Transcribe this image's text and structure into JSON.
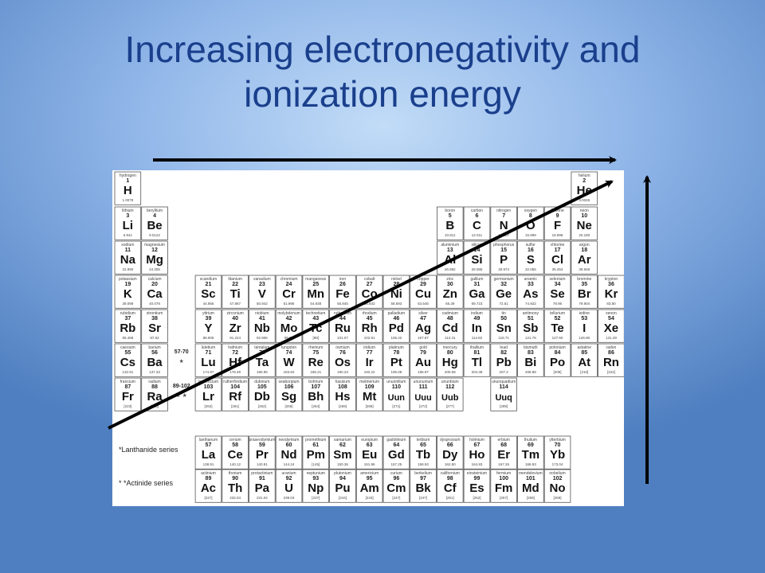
{
  "slide": {
    "title_lines": [
      "Increasing electronegativity and",
      "ionization energy"
    ]
  },
  "colors": {
    "title": "#1a3f8c",
    "arrow": "#000000",
    "background_center": "#c2dcf7",
    "background_edge": "#4f7fc0"
  },
  "periodic_table": {
    "elements": [
      {
        "name": "hydrogen",
        "num": "1",
        "sym": "H",
        "mass": "1.0079",
        "row": 0,
        "col": 0
      },
      {
        "name": "helium",
        "num": "2",
        "sym": "He",
        "mass": "4.0026",
        "row": 0,
        "col": 17
      },
      {
        "name": "lithium",
        "num": "3",
        "sym": "Li",
        "mass": "6.941",
        "row": 1,
        "col": 0
      },
      {
        "name": "beryllium",
        "num": "4",
        "sym": "Be",
        "mass": "9.0122",
        "row": 1,
        "col": 1
      },
      {
        "name": "boron",
        "num": "5",
        "sym": "B",
        "mass": "10.811",
        "row": 1,
        "col": 12
      },
      {
        "name": "carbon",
        "num": "6",
        "sym": "C",
        "mass": "12.011",
        "row": 1,
        "col": 13
      },
      {
        "name": "nitrogen",
        "num": "7",
        "sym": "N",
        "mass": "14.007",
        "row": 1,
        "col": 14
      },
      {
        "name": "oxygen",
        "num": "8",
        "sym": "O",
        "mass": "15.999",
        "row": 1,
        "col": 15
      },
      {
        "name": "fluorine",
        "num": "9",
        "sym": "F",
        "mass": "18.998",
        "row": 1,
        "col": 16
      },
      {
        "name": "neon",
        "num": "10",
        "sym": "Ne",
        "mass": "20.180",
        "row": 1,
        "col": 17
      },
      {
        "name": "sodium",
        "num": "11",
        "sym": "Na",
        "mass": "22.990",
        "row": 2,
        "col": 0
      },
      {
        "name": "magnesium",
        "num": "12",
        "sym": "Mg",
        "mass": "24.305",
        "row": 2,
        "col": 1
      },
      {
        "name": "aluminium",
        "num": "13",
        "sym": "Al",
        "mass": "26.982",
        "row": 2,
        "col": 12
      },
      {
        "name": "silicon",
        "num": "14",
        "sym": "Si",
        "mass": "28.086",
        "row": 2,
        "col": 13
      },
      {
        "name": "phosphorus",
        "num": "15",
        "sym": "P",
        "mass": "30.974",
        "row": 2,
        "col": 14
      },
      {
        "name": "sulfur",
        "num": "16",
        "sym": "S",
        "mass": "32.065",
        "row": 2,
        "col": 15
      },
      {
        "name": "chlorine",
        "num": "17",
        "sym": "Cl",
        "mass": "35.453",
        "row": 2,
        "col": 16
      },
      {
        "name": "argon",
        "num": "18",
        "sym": "Ar",
        "mass": "39.948",
        "row": 2,
        "col": 17
      },
      {
        "name": "potassium",
        "num": "19",
        "sym": "K",
        "mass": "39.098",
        "row": 3,
        "col": 0
      },
      {
        "name": "calcium",
        "num": "20",
        "sym": "Ca",
        "mass": "40.078",
        "row": 3,
        "col": 1
      },
      {
        "name": "scandium",
        "num": "21",
        "sym": "Sc",
        "mass": "44.956",
        "row": 3,
        "col": 3
      },
      {
        "name": "titanium",
        "num": "22",
        "sym": "Ti",
        "mass": "47.867",
        "row": 3,
        "col": 4
      },
      {
        "name": "vanadium",
        "num": "23",
        "sym": "V",
        "mass": "50.942",
        "row": 3,
        "col": 5
      },
      {
        "name": "chromium",
        "num": "24",
        "sym": "Cr",
        "mass": "51.996",
        "row": 3,
        "col": 6
      },
      {
        "name": "manganese",
        "num": "25",
        "sym": "Mn",
        "mass": "54.938",
        "row": 3,
        "col": 7
      },
      {
        "name": "iron",
        "num": "26",
        "sym": "Fe",
        "mass": "55.845",
        "row": 3,
        "col": 8
      },
      {
        "name": "cobalt",
        "num": "27",
        "sym": "Co",
        "mass": "58.933",
        "row": 3,
        "col": 9
      },
      {
        "name": "nickel",
        "num": "28",
        "sym": "Ni",
        "mass": "58.693",
        "row": 3,
        "col": 10
      },
      {
        "name": "copper",
        "num": "29",
        "sym": "Cu",
        "mass": "63.546",
        "row": 3,
        "col": 11
      },
      {
        "name": "zinc",
        "num": "30",
        "sym": "Zn",
        "mass": "65.39",
        "row": 3,
        "col": 12
      },
      {
        "name": "gallium",
        "num": "31",
        "sym": "Ga",
        "mass": "69.723",
        "row": 3,
        "col": 13
      },
      {
        "name": "germanium",
        "num": "32",
        "sym": "Ge",
        "mass": "72.61",
        "row": 3,
        "col": 14
      },
      {
        "name": "arsenic",
        "num": "33",
        "sym": "As",
        "mass": "74.922",
        "row": 3,
        "col": 15
      },
      {
        "name": "selenium",
        "num": "34",
        "sym": "Se",
        "mass": "78.96",
        "row": 3,
        "col": 16
      },
      {
        "name": "bromine",
        "num": "35",
        "sym": "Br",
        "mass": "79.904",
        "row": 3,
        "col": 17
      },
      {
        "name": "krypton",
        "num": "36",
        "sym": "Kr",
        "mass": "83.80",
        "row": 3,
        "col": 18
      },
      {
        "name": "rubidium",
        "num": "37",
        "sym": "Rb",
        "mass": "85.468",
        "row": 4,
        "col": 0
      },
      {
        "name": "strontium",
        "num": "38",
        "sym": "Sr",
        "mass": "87.62",
        "row": 4,
        "col": 1
      },
      {
        "name": "yttrium",
        "num": "39",
        "sym": "Y",
        "mass": "88.906",
        "row": 4,
        "col": 3
      },
      {
        "name": "zirconium",
        "num": "40",
        "sym": "Zr",
        "mass": "91.224",
        "row": 4,
        "col": 4
      },
      {
        "name": "niobium",
        "num": "41",
        "sym": "Nb",
        "mass": "92.906",
        "row": 4,
        "col": 5
      },
      {
        "name": "molybdenum",
        "num": "42",
        "sym": "Mo",
        "mass": "95.94",
        "row": 4,
        "col": 6
      },
      {
        "name": "technetium",
        "num": "43",
        "sym": "Tc",
        "mass": "[98]",
        "row": 4,
        "col": 7
      },
      {
        "name": "ruthenium",
        "num": "44",
        "sym": "Ru",
        "mass": "101.07",
        "row": 4,
        "col": 8
      },
      {
        "name": "rhodium",
        "num": "45",
        "sym": "Rh",
        "mass": "102.91",
        "row": 4,
        "col": 9
      },
      {
        "name": "palladium",
        "num": "46",
        "sym": "Pd",
        "mass": "106.42",
        "row": 4,
        "col": 10
      },
      {
        "name": "silver",
        "num": "47",
        "sym": "Ag",
        "mass": "107.87",
        "row": 4,
        "col": 11
      },
      {
        "name": "cadmium",
        "num": "48",
        "sym": "Cd",
        "mass": "112.41",
        "row": 4,
        "col": 12
      },
      {
        "name": "indium",
        "num": "49",
        "sym": "In",
        "mass": "114.82",
        "row": 4,
        "col": 13
      },
      {
        "name": "tin",
        "num": "50",
        "sym": "Sn",
        "mass": "118.71",
        "row": 4,
        "col": 14
      },
      {
        "name": "antimony",
        "num": "51",
        "sym": "Sb",
        "mass": "121.76",
        "row": 4,
        "col": 15
      },
      {
        "name": "tellurium",
        "num": "52",
        "sym": "Te",
        "mass": "127.60",
        "row": 4,
        "col": 16
      },
      {
        "name": "iodine",
        "num": "53",
        "sym": "I",
        "mass": "126.90",
        "row": 4,
        "col": 17
      },
      {
        "name": "xenon",
        "num": "54",
        "sym": "Xe",
        "mass": "131.29",
        "row": 4,
        "col": 18
      },
      {
        "name": "caesium",
        "num": "55",
        "sym": "Cs",
        "mass": "132.91",
        "row": 5,
        "col": 0
      },
      {
        "name": "barium",
        "num": "56",
        "sym": "Ba",
        "mass": "137.33",
        "row": 5,
        "col": 1
      },
      {
        "name": "lutetium",
        "num": "71",
        "sym": "Lu",
        "mass": "174.97",
        "row": 5,
        "col": 3
      },
      {
        "name": "hafnium",
        "num": "72",
        "sym": "Hf",
        "mass": "178.49",
        "row": 5,
        "col": 4
      },
      {
        "name": "tantalum",
        "num": "73",
        "sym": "Ta",
        "mass": "180.95",
        "row": 5,
        "col": 5
      },
      {
        "name": "tungsten",
        "num": "74",
        "sym": "W",
        "mass": "183.84",
        "row": 5,
        "col": 6
      },
      {
        "name": "rhenium",
        "num": "75",
        "sym": "Re",
        "mass": "186.21",
        "row": 5,
        "col": 7
      },
      {
        "name": "osmium",
        "num": "76",
        "sym": "Os",
        "mass": "190.23",
        "row": 5,
        "col": 8
      },
      {
        "name": "iridium",
        "num": "77",
        "sym": "Ir",
        "mass": "192.22",
        "row": 5,
        "col": 9
      },
      {
        "name": "platinum",
        "num": "78",
        "sym": "Pt",
        "mass": "195.08",
        "row": 5,
        "col": 10
      },
      {
        "name": "gold",
        "num": "79",
        "sym": "Au",
        "mass": "196.97",
        "row": 5,
        "col": 11
      },
      {
        "name": "mercury",
        "num": "80",
        "sym": "Hg",
        "mass": "200.59",
        "row": 5,
        "col": 12
      },
      {
        "name": "thallium",
        "num": "81",
        "sym": "Tl",
        "mass": "204.38",
        "row": 5,
        "col": 13
      },
      {
        "name": "lead",
        "num": "82",
        "sym": "Pb",
        "mass": "207.2",
        "row": 5,
        "col": 14
      },
      {
        "name": "bismuth",
        "num": "83",
        "sym": "Bi",
        "mass": "208.98",
        "row": 5,
        "col": 15
      },
      {
        "name": "polonium",
        "num": "84",
        "sym": "Po",
        "mass": "[209]",
        "row": 5,
        "col": 16
      },
      {
        "name": "astatine",
        "num": "85",
        "sym": "At",
        "mass": "[210]",
        "row": 5,
        "col": 17
      },
      {
        "name": "radon",
        "num": "86",
        "sym": "Rn",
        "mass": "[222]",
        "row": 5,
        "col": 18
      },
      {
        "name": "francium",
        "num": "87",
        "sym": "Fr",
        "mass": "[223]",
        "row": 6,
        "col": 0
      },
      {
        "name": "radium",
        "num": "88",
        "sym": "Ra",
        "mass": "[226]",
        "row": 6,
        "col": 1
      },
      {
        "name": "lawrencium",
        "num": "103",
        "sym": "Lr",
        "mass": "[262]",
        "row": 6,
        "col": 3
      },
      {
        "name": "rutherfordium",
        "num": "104",
        "sym": "Rf",
        "mass": "[261]",
        "row": 6,
        "col": 4
      },
      {
        "name": "dubnium",
        "num": "105",
        "sym": "Db",
        "mass": "[262]",
        "row": 6,
        "col": 5
      },
      {
        "name": "seaborgium",
        "num": "106",
        "sym": "Sg",
        "mass": "[266]",
        "row": 6,
        "col": 6
      },
      {
        "name": "bohrium",
        "num": "107",
        "sym": "Bh",
        "mass": "[264]",
        "row": 6,
        "col": 7
      },
      {
        "name": "hassium",
        "num": "108",
        "sym": "Hs",
        "mass": "[269]",
        "row": 6,
        "col": 8
      },
      {
        "name": "meitnerium",
        "num": "109",
        "sym": "Mt",
        "mass": "[268]",
        "row": 6,
        "col": 9
      },
      {
        "name": "ununnilium",
        "num": "110",
        "sym": "Uun",
        "mass": "[271]",
        "row": 6,
        "col": 10
      },
      {
        "name": "unununium",
        "num": "111",
        "sym": "Uuu",
        "mass": "[272]",
        "row": 6,
        "col": 11
      },
      {
        "name": "ununbium",
        "num": "112",
        "sym": "Uub",
        "mass": "[277]",
        "row": 6,
        "col": 12
      },
      {
        "name": "ununquadium",
        "num": "114",
        "sym": "Uuq",
        "mass": "[289]",
        "row": 6,
        "col": 14
      }
    ],
    "gap_markers": [
      {
        "num": "57-70",
        "sym": "*",
        "row": 5,
        "col": 2
      },
      {
        "num": "89-102",
        "sym": "* *",
        "row": 6,
        "col": 2
      }
    ],
    "series_labels": [
      {
        "text": "*Lanthanide series",
        "row": 7
      },
      {
        "text": "* *Actinide series",
        "row": 8
      }
    ],
    "f_block": [
      {
        "name": "lanthanum",
        "num": "57",
        "sym": "La",
        "mass": "138.91",
        "row": 7,
        "col": 3
      },
      {
        "name": "cerium",
        "num": "58",
        "sym": "Ce",
        "mass": "140.12",
        "row": 7,
        "col": 4
      },
      {
        "name": "praseodymium",
        "num": "59",
        "sym": "Pr",
        "mass": "140.91",
        "row": 7,
        "col": 5
      },
      {
        "name": "neodymium",
        "num": "60",
        "sym": "Nd",
        "mass": "144.24",
        "row": 7,
        "col": 6
      },
      {
        "name": "promethium",
        "num": "61",
        "sym": "Pm",
        "mass": "[145]",
        "row": 7,
        "col": 7
      },
      {
        "name": "samarium",
        "num": "62",
        "sym": "Sm",
        "mass": "150.36",
        "row": 7,
        "col": 8
      },
      {
        "name": "europium",
        "num": "63",
        "sym": "Eu",
        "mass": "151.96",
        "row": 7,
        "col": 9
      },
      {
        "name": "gadolinium",
        "num": "64",
        "sym": "Gd",
        "mass": "157.25",
        "row": 7,
        "col": 10
      },
      {
        "name": "terbium",
        "num": "65",
        "sym": "Tb",
        "mass": "158.93",
        "row": 7,
        "col": 11
      },
      {
        "name": "dysprosium",
        "num": "66",
        "sym": "Dy",
        "mass": "162.50",
        "row": 7,
        "col": 12
      },
      {
        "name": "holmium",
        "num": "67",
        "sym": "Ho",
        "mass": "164.93",
        "row": 7,
        "col": 13
      },
      {
        "name": "erbium",
        "num": "68",
        "sym": "Er",
        "mass": "167.26",
        "row": 7,
        "col": 14
      },
      {
        "name": "thulium",
        "num": "69",
        "sym": "Tm",
        "mass": "168.93",
        "row": 7,
        "col": 15
      },
      {
        "name": "ytterbium",
        "num": "70",
        "sym": "Yb",
        "mass": "173.04",
        "row": 7,
        "col": 16
      },
      {
        "name": "actinium",
        "num": "89",
        "sym": "Ac",
        "mass": "[227]",
        "row": 8,
        "col": 3
      },
      {
        "name": "thorium",
        "num": "90",
        "sym": "Th",
        "mass": "232.04",
        "row": 8,
        "col": 4
      },
      {
        "name": "protactinium",
        "num": "91",
        "sym": "Pa",
        "mass": "231.04",
        "row": 8,
        "col": 5
      },
      {
        "name": "uranium",
        "num": "92",
        "sym": "U",
        "mass": "238.03",
        "row": 8,
        "col": 6
      },
      {
        "name": "neptunium",
        "num": "93",
        "sym": "Np",
        "mass": "[237]",
        "row": 8,
        "col": 7
      },
      {
        "name": "plutonium",
        "num": "94",
        "sym": "Pu",
        "mass": "[244]",
        "row": 8,
        "col": 8
      },
      {
        "name": "americium",
        "num": "95",
        "sym": "Am",
        "mass": "[243]",
        "row": 8,
        "col": 9
      },
      {
        "name": "curium",
        "num": "96",
        "sym": "Cm",
        "mass": "[247]",
        "row": 8,
        "col": 10
      },
      {
        "name": "berkelium",
        "num": "97",
        "sym": "Bk",
        "mass": "[247]",
        "row": 8,
        "col": 11
      },
      {
        "name": "californium",
        "num": "98",
        "sym": "Cf",
        "mass": "[251]",
        "row": 8,
        "col": 12
      },
      {
        "name": "einsteinium",
        "num": "99",
        "sym": "Es",
        "mass": "[252]",
        "row": 8,
        "col": 13
      },
      {
        "name": "fermium",
        "num": "100",
        "sym": "Fm",
        "mass": "[257]",
        "row": 8,
        "col": 14
      },
      {
        "name": "mendelevium",
        "num": "101",
        "sym": "Md",
        "mass": "[258]",
        "row": 8,
        "col": 15
      },
      {
        "name": "nobelium",
        "num": "102",
        "sym": "No",
        "mass": "[259]",
        "row": 8,
        "col": 16
      }
    ]
  }
}
